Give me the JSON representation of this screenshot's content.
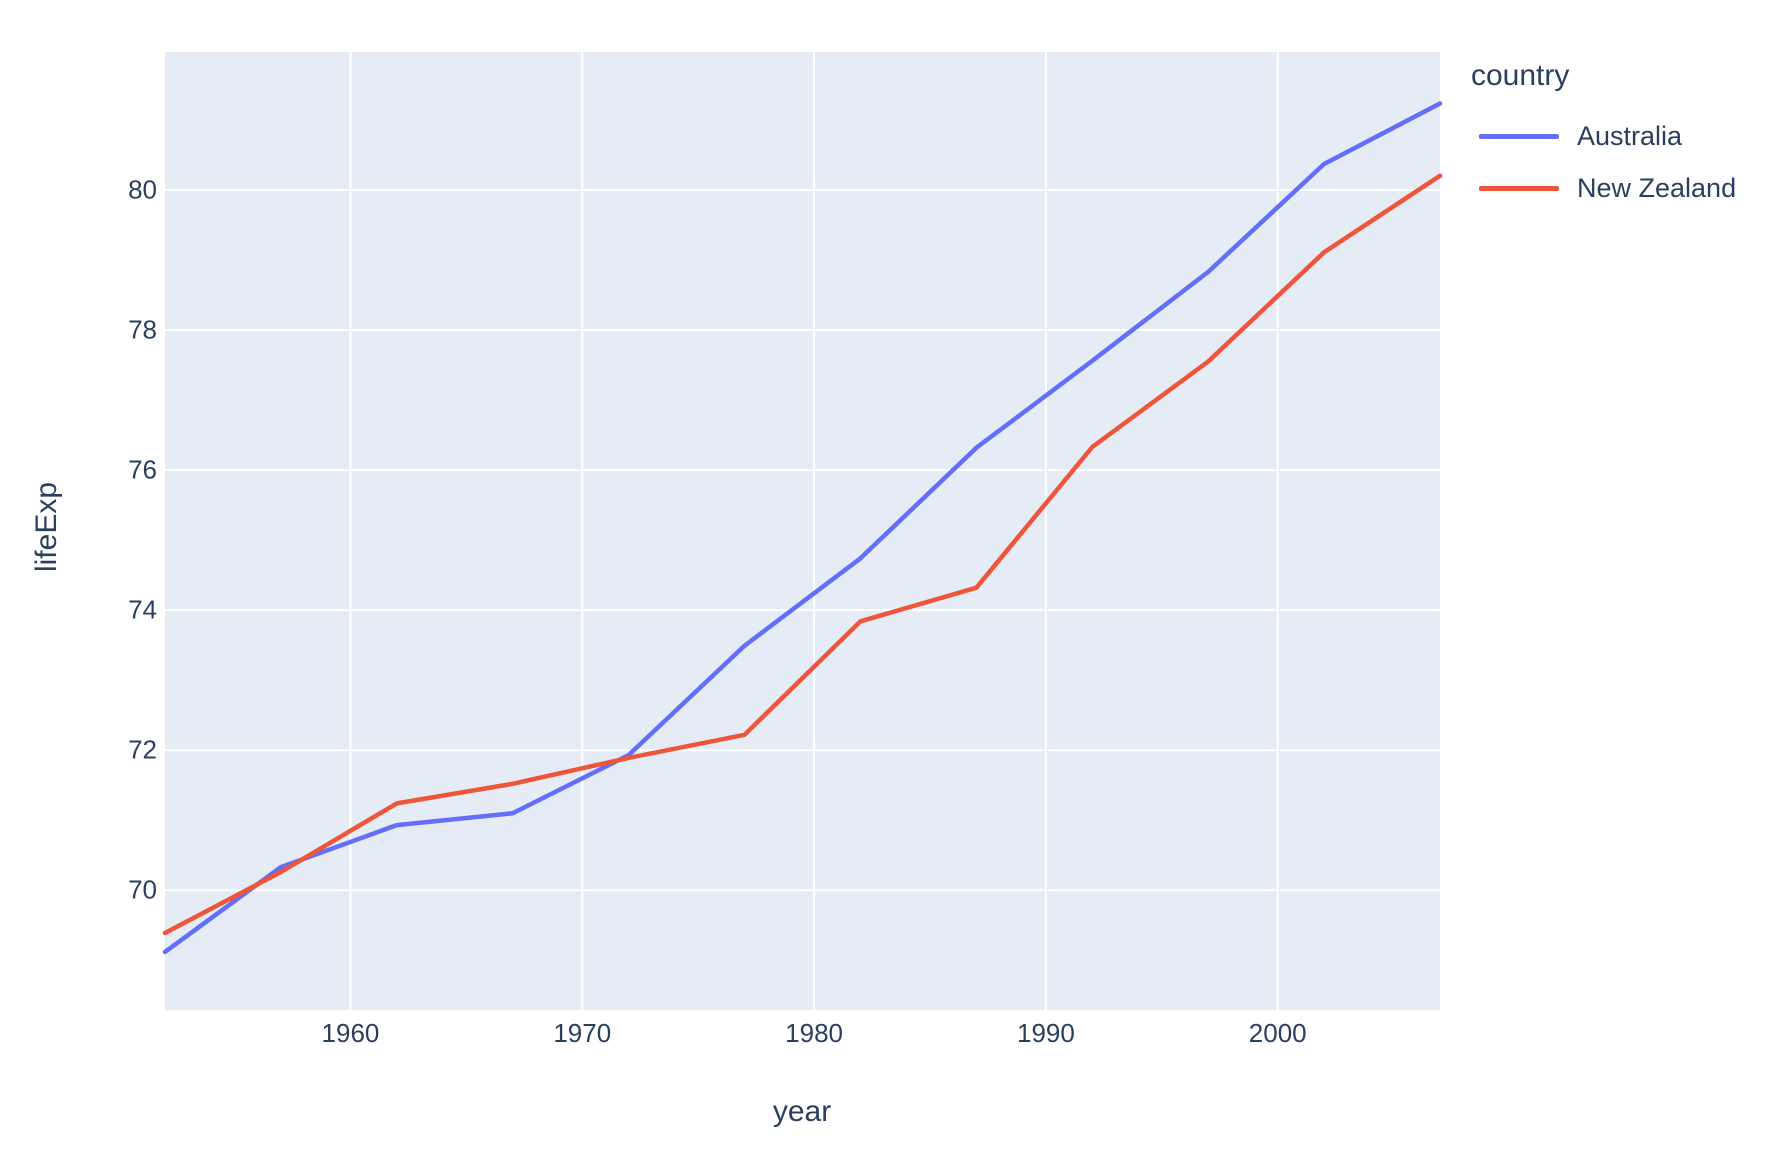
{
  "chart_data": {
    "type": "line",
    "x": [
      1952,
      1957,
      1962,
      1967,
      1972,
      1977,
      1982,
      1987,
      1992,
      1997,
      2002,
      2007
    ],
    "series": [
      {
        "name": "Australia",
        "color": "#636EFA",
        "values": [
          69.12,
          70.33,
          70.93,
          71.1,
          71.93,
          73.49,
          74.74,
          76.32,
          77.56,
          78.83,
          80.37,
          81.235
        ]
      },
      {
        "name": "New Zealand",
        "color": "#EF553B",
        "values": [
          69.39,
          70.26,
          71.24,
          71.52,
          71.89,
          72.22,
          73.84,
          74.32,
          76.33,
          77.55,
          79.11,
          80.204
        ]
      }
    ],
    "title": "",
    "xlabel": "year",
    "ylabel": "lifeExp",
    "xlim": [
      1952,
      2007
    ],
    "ylim": [
      68.29,
      81.97
    ],
    "xticks": [
      1960,
      1970,
      1980,
      1990,
      2000
    ],
    "yticks": [
      70,
      72,
      74,
      76,
      78,
      80
    ],
    "grid": true,
    "legend": {
      "title": "country",
      "position": "right"
    },
    "colors": {
      "plot_bg": "#E5ECF6",
      "grid": "#FFFFFF",
      "text": "#2a3f5f",
      "paper_bg": "#FFFFFF"
    }
  }
}
